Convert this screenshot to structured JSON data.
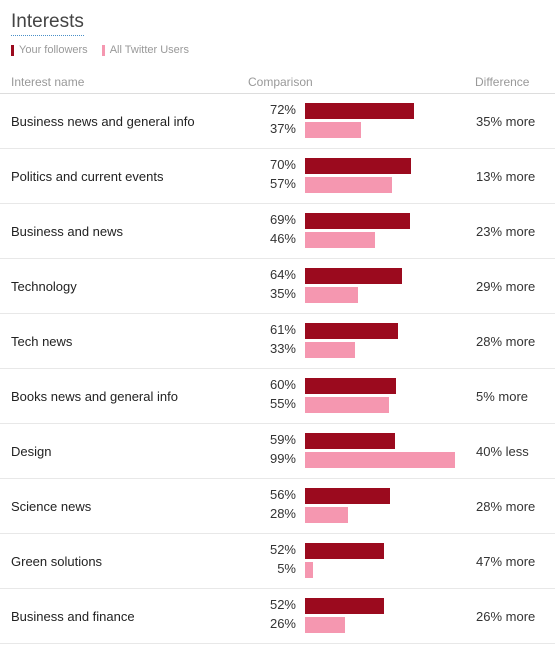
{
  "title": "Interests",
  "legend": {
    "followers": "Your followers",
    "all_users": "All Twitter Users"
  },
  "headers": {
    "name": "Interest name",
    "comparison": "Comparison",
    "difference": "Difference"
  },
  "colors": {
    "followers": "#9b0a1e",
    "all_users": "#f597b0"
  },
  "rows": [
    {
      "name": "Business news and general info",
      "followers": "72%",
      "all": "37%",
      "diff": "35% more"
    },
    {
      "name": "Politics and current events",
      "followers": "70%",
      "all": "57%",
      "diff": "13% more"
    },
    {
      "name": "Business and news",
      "followers": "69%",
      "all": "46%",
      "diff": "23% more"
    },
    {
      "name": "Technology",
      "followers": "64%",
      "all": "35%",
      "diff": "29% more"
    },
    {
      "name": "Tech news",
      "followers": "61%",
      "all": "33%",
      "diff": "28% more"
    },
    {
      "name": "Books news and general info",
      "followers": "60%",
      "all": "55%",
      "diff": "5% more"
    },
    {
      "name": "Design",
      "followers": "59%",
      "all": "99%",
      "diff": "40% less"
    },
    {
      "name": "Science news",
      "followers": "56%",
      "all": "28%",
      "diff": "28% more"
    },
    {
      "name": "Green solutions",
      "followers": "52%",
      "all": "5%",
      "diff": "47% more"
    },
    {
      "name": "Business and finance",
      "followers": "52%",
      "all": "26%",
      "diff": "26% more"
    }
  ],
  "chart_data": {
    "type": "bar",
    "title": "Interests",
    "categories": [
      "Business news and general info",
      "Politics and current events",
      "Business and news",
      "Technology",
      "Tech news",
      "Books news and general info",
      "Design",
      "Science news",
      "Green solutions",
      "Business and finance"
    ],
    "series": [
      {
        "name": "Your followers",
        "values": [
          72,
          70,
          69,
          64,
          61,
          60,
          59,
          56,
          52,
          52
        ]
      },
      {
        "name": "All Twitter Users",
        "values": [
          37,
          57,
          46,
          35,
          33,
          55,
          99,
          28,
          5,
          26
        ]
      }
    ],
    "xlim": [
      0,
      100
    ],
    "legend": "top-left",
    "grid": false
  }
}
